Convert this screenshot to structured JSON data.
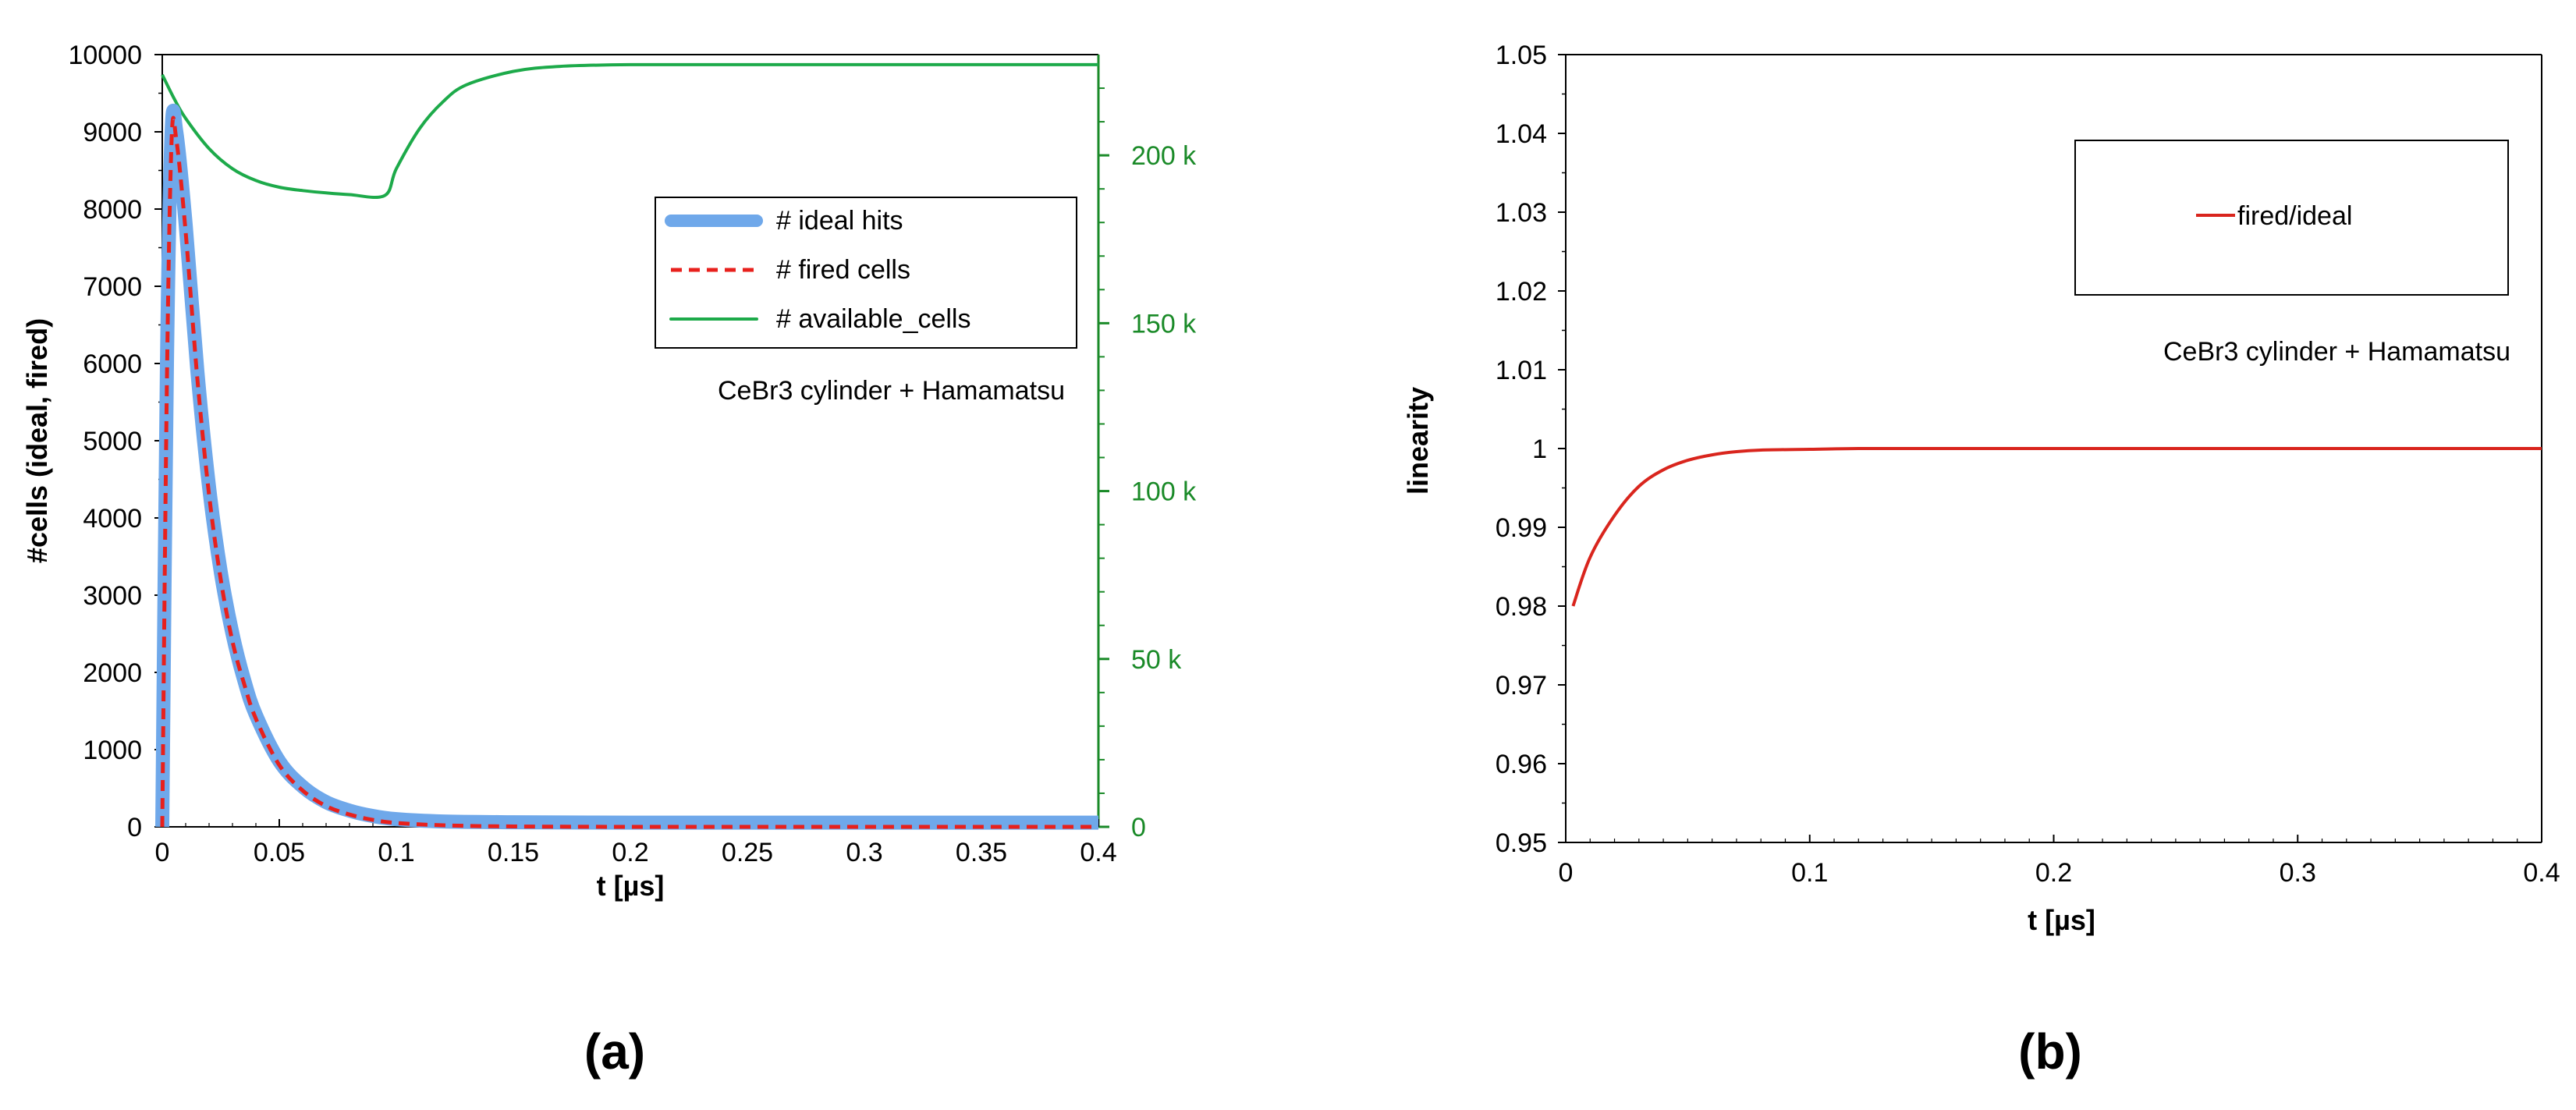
{
  "chart_data": [
    {
      "type": "line",
      "caption": "(a)",
      "xlabel": "t [µs]",
      "ylabel": "#cells (ideal, fired)",
      "xlim": [
        0,
        0.4
      ],
      "ylim": [
        0,
        10000
      ],
      "y2lim": [
        0,
        230000
      ],
      "x_ticks": [
        "0",
        "0.05",
        "0.1",
        "0.15",
        "0.2",
        "0.25",
        "0.3",
        "0.35",
        "0.4"
      ],
      "y_ticks": [
        "0",
        "1000",
        "2000",
        "3000",
        "4000",
        "5000",
        "6000",
        "7000",
        "8000",
        "9000",
        "10000"
      ],
      "y2_ticks": [
        "0",
        "50 k",
        "100 k",
        "150 k",
        "200 k"
      ],
      "annotation": "CeBr3 cylinder + Hamamatsu",
      "grid": false,
      "legend_position": "upper-right",
      "colors": {
        "ideal": "#6fa8ea",
        "fired": "#e8201c",
        "available": "#1daa4a",
        "right_axis": "#1a8a28"
      },
      "series": [
        {
          "name": "# ideal hits",
          "axis": "left",
          "x": [
            0,
            0.002,
            0.004,
            0.006,
            0.01,
            0.015,
            0.02,
            0.025,
            0.03,
            0.035,
            0.04,
            0.05,
            0.06,
            0.07,
            0.08,
            0.09,
            0.1,
            0.12,
            0.15,
            0.2,
            0.25,
            0.3,
            0.35,
            0.4
          ],
          "y": [
            0,
            6000,
            9000,
            9000,
            7800,
            5900,
            4400,
            3300,
            2500,
            1900,
            1450,
            850,
            520,
            320,
            210,
            140,
            100,
            70,
            60,
            55,
            55,
            55,
            55,
            55
          ]
        },
        {
          "name": "# fired cells",
          "axis": "left",
          "x": [
            0,
            0.002,
            0.004,
            0.006,
            0.01,
            0.015,
            0.02,
            0.025,
            0.03,
            0.035,
            0.04,
            0.05,
            0.06,
            0.07,
            0.08,
            0.09,
            0.1,
            0.12,
            0.15,
            0.2,
            0.25,
            0.3,
            0.35,
            0.4
          ],
          "y": [
            0,
            5800,
            8900,
            8900,
            7700,
            5800,
            4300,
            3200,
            2400,
            1850,
            1400,
            800,
            470,
            270,
            160,
            90,
            50,
            20,
            5,
            0,
            0,
            0,
            0,
            0
          ]
        },
        {
          "name": "# available_cells",
          "axis": "right",
          "x": [
            0,
            0.005,
            0.01,
            0.02,
            0.03,
            0.04,
            0.05,
            0.06,
            0.07,
            0.08,
            0.095,
            0.1,
            0.11,
            0.12,
            0.13,
            0.15,
            0.17,
            0.2,
            0.25,
            0.3,
            0.35,
            0.4
          ],
          "y": [
            224000,
            217000,
            211000,
            202000,
            196000,
            192500,
            190500,
            189500,
            188800,
            188300,
            188000,
            196000,
            208000,
            216000,
            221000,
            225000,
            226500,
            227000,
            227000,
            227000,
            227000,
            227000
          ]
        }
      ]
    },
    {
      "type": "line",
      "caption": "(b)",
      "xlabel": "t [µs]",
      "ylabel": "linearity",
      "xlim": [
        0,
        0.4
      ],
      "ylim": [
        0.95,
        1.05
      ],
      "x_ticks": [
        "0",
        "0.1",
        "0.2",
        "0.3",
        "0.4"
      ],
      "y_ticks": [
        "0.95",
        "0.96",
        "0.97",
        "0.98",
        "0.99",
        "1",
        "1.01",
        "1.02",
        "1.03",
        "1.04",
        "1.05"
      ],
      "annotation": "CeBr3 cylinder + Hamamatsu",
      "grid": false,
      "legend_position": "upper-right",
      "colors": {
        "line": "#d9251d"
      },
      "series": [
        {
          "name": "fired/ideal",
          "axis": "left",
          "x": [
            0.003,
            0.01,
            0.02,
            0.03,
            0.04,
            0.05,
            0.06,
            0.07,
            0.08,
            0.1,
            0.12,
            0.15,
            0.2,
            0.3,
            0.4
          ],
          "y": [
            0.98,
            0.9862,
            0.9915,
            0.9952,
            0.9973,
            0.9985,
            0.9992,
            0.9996,
            0.9998,
            0.9999,
            1.0,
            1.0,
            1.0,
            1.0,
            1.0
          ]
        }
      ]
    }
  ]
}
